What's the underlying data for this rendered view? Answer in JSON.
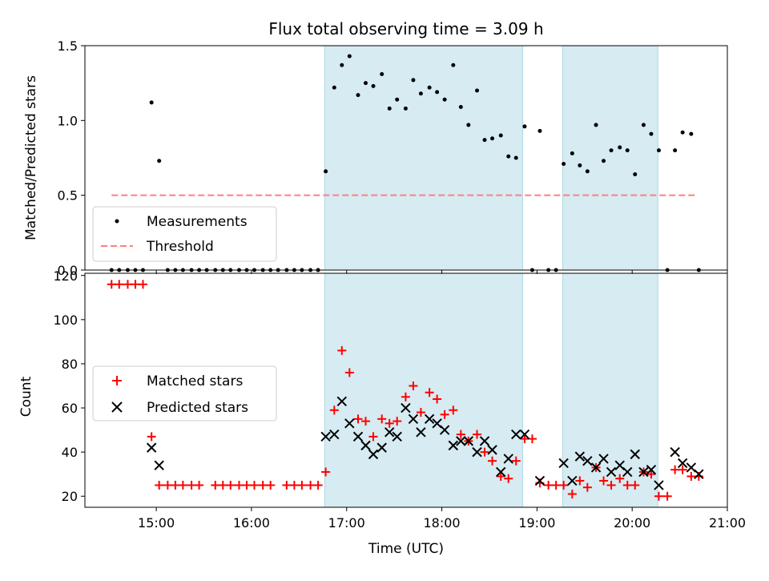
{
  "title": "Flux total observing time = 3.09 h",
  "colors": {
    "shade": "#add8e6",
    "threshold": "#ff7f7f",
    "measurement": "#000000",
    "matched": "#ff0000",
    "predicted": "#000000"
  },
  "chart_data": [
    {
      "type": "scatter",
      "ylabel": "Matched/Predicted stars",
      "xlim": [
        14.25,
        21.0
      ],
      "ylim": [
        0,
        1.5
      ],
      "yticks": [
        0.0,
        0.5,
        1.0,
        1.5
      ],
      "ytick_labels": [
        "0.0",
        "0.5",
        "1.0",
        "1.5"
      ],
      "legend_position": "lower-left",
      "legend": [
        "Measurements",
        "Threshold"
      ],
      "threshold": {
        "name": "Threshold",
        "y": 0.5,
        "x_range": [
          14.53,
          20.67
        ]
      },
      "shaded_spans": [
        [
          16.77,
          18.85
        ],
        [
          19.27,
          20.27
        ]
      ],
      "series": [
        {
          "name": "Measurements",
          "x": [
            14.53,
            14.61,
            14.7,
            14.78,
            14.86,
            14.95,
            15.03,
            15.12,
            15.2,
            15.28,
            15.37,
            15.45,
            15.53,
            15.62,
            15.7,
            15.78,
            15.87,
            15.95,
            16.03,
            16.12,
            16.2,
            16.28,
            16.37,
            16.45,
            16.53,
            16.62,
            16.7,
            16.78,
            16.87,
            16.95,
            17.03,
            17.12,
            17.2,
            17.28,
            17.37,
            17.45,
            17.53,
            17.62,
            17.7,
            17.78,
            17.87,
            17.95,
            18.03,
            18.12,
            18.2,
            18.28,
            18.37,
            18.45,
            18.53,
            18.62,
            18.7,
            18.78,
            18.87,
            18.95,
            19.03,
            19.12,
            19.2,
            19.28,
            19.37,
            19.45,
            19.53,
            19.62,
            19.7,
            19.78,
            19.87,
            19.95,
            20.03,
            20.12,
            20.2,
            20.28,
            20.37,
            20.45,
            20.53,
            20.62,
            20.7
          ],
          "y": [
            0,
            0,
            0,
            0,
            0,
            1.12,
            0.73,
            0,
            0,
            0,
            0,
            0,
            0,
            0,
            0,
            0,
            0,
            0,
            0,
            0,
            0,
            0,
            0,
            0,
            0,
            0,
            0,
            0.66,
            1.22,
            1.37,
            1.43,
            1.17,
            1.25,
            1.23,
            1.31,
            1.08,
            1.14,
            1.08,
            1.27,
            1.18,
            1.22,
            1.19,
            1.14,
            1.37,
            1.09,
            0.97,
            1.2,
            0.87,
            0.88,
            0.9,
            0.76,
            0.75,
            0.96,
            0,
            0.93,
            0,
            0,
            0.71,
            0.78,
            0.7,
            0.66,
            0.97,
            0.73,
            0.8,
            0.82,
            0.8,
            0.64,
            0.97,
            0.91,
            0.8,
            0,
            0.8,
            0.92,
            0.91,
            0
          ]
        }
      ]
    },
    {
      "type": "scatter",
      "xlabel": "Time (UTC)",
      "ylabel": "Count",
      "xlim": [
        14.25,
        21.0
      ],
      "ylim": [
        15,
        121
      ],
      "yticks": [
        20,
        40,
        60,
        80,
        100,
        120
      ],
      "ytick_labels": [
        "20",
        "40",
        "60",
        "80",
        "100",
        "120"
      ],
      "xticks": [
        15,
        16,
        17,
        18,
        19,
        20,
        21
      ],
      "xtick_labels": [
        "15:00",
        "16:00",
        "17:00",
        "18:00",
        "19:00",
        "20:00",
        "21:00"
      ],
      "legend_position": "center-left",
      "legend": [
        "Matched stars",
        "Predicted stars"
      ],
      "shaded_spans": [
        [
          16.77,
          18.85
        ],
        [
          19.27,
          20.27
        ]
      ],
      "series": [
        {
          "name": "Matched stars",
          "x": [
            14.53,
            14.61,
            14.7,
            14.78,
            14.86,
            14.95,
            15.03,
            15.12,
            15.2,
            15.28,
            15.37,
            15.45,
            15.62,
            15.7,
            15.78,
            15.87,
            15.95,
            16.03,
            16.12,
            16.2,
            16.37,
            16.45,
            16.53,
            16.62,
            16.7,
            16.78,
            16.87,
            16.95,
            17.03,
            17.12,
            17.2,
            17.28,
            17.37,
            17.45,
            17.53,
            17.62,
            17.7,
            17.78,
            17.87,
            17.95,
            18.03,
            18.12,
            18.2,
            18.28,
            18.37,
            18.45,
            18.53,
            18.62,
            18.7,
            18.78,
            18.87,
            18.95,
            19.03,
            19.12,
            19.2,
            19.28,
            19.37,
            19.45,
            19.53,
            19.62,
            19.7,
            19.78,
            19.87,
            19.95,
            20.03,
            20.12,
            20.2,
            20.28,
            20.37,
            20.45,
            20.53,
            20.62,
            20.7
          ],
          "y": [
            116,
            116,
            116,
            116,
            116,
            47,
            25,
            25,
            25,
            25,
            25,
            25,
            25,
            25,
            25,
            25,
            25,
            25,
            25,
            25,
            25,
            25,
            25,
            25,
            25,
            31,
            59,
            86,
            76,
            55,
            54,
            47,
            55,
            53,
            54,
            65,
            70,
            58,
            67,
            64,
            57,
            59,
            48,
            45,
            48,
            40,
            36,
            29,
            28,
            36,
            46,
            46,
            26,
            25,
            25,
            25,
            21,
            27,
            24,
            33,
            27,
            25,
            28,
            25,
            25,
            31,
            30,
            20,
            20,
            32,
            32,
            29,
            29
          ]
        },
        {
          "name": "Predicted stars",
          "x": [
            14.95,
            15.03,
            16.78,
            16.87,
            16.95,
            17.03,
            17.12,
            17.2,
            17.28,
            17.37,
            17.45,
            17.53,
            17.62,
            17.7,
            17.78,
            17.87,
            17.95,
            18.03,
            18.12,
            18.2,
            18.28,
            18.37,
            18.45,
            18.53,
            18.62,
            18.7,
            18.78,
            18.87,
            19.03,
            19.28,
            19.37,
            19.45,
            19.53,
            19.62,
            19.7,
            19.78,
            19.87,
            19.95,
            20.03,
            20.12,
            20.2,
            20.28,
            20.45,
            20.53,
            20.62,
            20.7
          ],
          "y": [
            42,
            34,
            47,
            48,
            63,
            53,
            47,
            43,
            39,
            42,
            49,
            47,
            60,
            55,
            49,
            55,
            53,
            50,
            43,
            45,
            45,
            40,
            45,
            41,
            31,
            37,
            48,
            48,
            27,
            35,
            27,
            38,
            36,
            33,
            37,
            31,
            34,
            31,
            39,
            31,
            32,
            25,
            40,
            35,
            33,
            30
          ]
        }
      ]
    }
  ]
}
